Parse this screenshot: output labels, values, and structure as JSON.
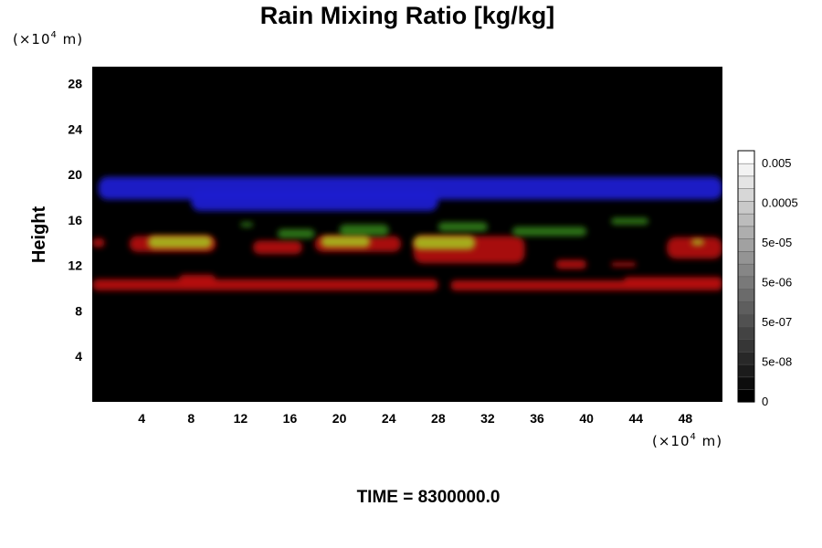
{
  "chart_data": {
    "type": "heatmap",
    "title": "Rain Mixing Ratio [kg/kg]",
    "ylabel": "Height",
    "xlabel": "",
    "x_unit": {
      "prefix": "(×10",
      "exp": "4",
      "suffix": " m)"
    },
    "y_unit": {
      "prefix": "(×10",
      "exp": "4",
      "suffix": " m)"
    },
    "xlim": [
      0,
      51
    ],
    "ylim": [
      0,
      29.5
    ],
    "x_ticks": [
      4,
      8,
      12,
      16,
      20,
      24,
      28,
      32,
      36,
      40,
      44,
      48
    ],
    "y_ticks": [
      4,
      8,
      12,
      16,
      20,
      24,
      28
    ],
    "background_color": "#000000",
    "colorbar": {
      "labels": [
        "0.005",
        "0.0005",
        "5e-05",
        "5e-06",
        "5e-07",
        "5e-08",
        "0"
      ],
      "n_levels": 20,
      "colors": [
        "#000000",
        "#ffffff"
      ]
    },
    "layers": [
      {
        "name": "blue-layer",
        "color": "#1a1fd0",
        "bands": [
          {
            "x0": 0.5,
            "x1": 51,
            "y0": 17.8,
            "y1": 19.8
          },
          {
            "x0": 8,
            "x1": 28,
            "y0": 16.8,
            "y1": 18.6
          }
        ]
      },
      {
        "name": "upper-red-layer",
        "color": "#b01010",
        "bands": [
          {
            "x0": 0,
            "x1": 1,
            "y0": 13.6,
            "y1": 14.4
          },
          {
            "x0": 3,
            "x1": 10,
            "y0": 13.2,
            "y1": 14.6
          },
          {
            "x0": 13,
            "x1": 17,
            "y0": 13.0,
            "y1": 14.2
          },
          {
            "x0": 18,
            "x1": 25,
            "y0": 13.2,
            "y1": 14.6
          },
          {
            "x0": 26,
            "x1": 35,
            "y0": 12.2,
            "y1": 14.6
          },
          {
            "x0": 37.5,
            "x1": 40,
            "y0": 11.7,
            "y1": 12.5
          },
          {
            "x0": 42,
            "x1": 44,
            "y0": 11.9,
            "y1": 12.3
          },
          {
            "x0": 46.5,
            "x1": 51,
            "y0": 12.6,
            "y1": 14.5
          }
        ]
      },
      {
        "name": "lower-red-layer",
        "color": "#b50a0a",
        "bands": [
          {
            "x0": 0,
            "x1": 28,
            "y0": 9.8,
            "y1": 10.8
          },
          {
            "x0": 7,
            "x1": 10,
            "y0": 10.2,
            "y1": 11.2
          },
          {
            "x0": 29,
            "x1": 51,
            "y0": 9.8,
            "y1": 10.7
          },
          {
            "x0": 43,
            "x1": 51,
            "y0": 10.2,
            "y1": 11.0
          }
        ]
      },
      {
        "name": "green-patches",
        "color": "#2e7a18",
        "bands": [
          {
            "x0": 12,
            "x1": 13,
            "y0": 15.4,
            "y1": 15.8
          },
          {
            "x0": 15,
            "x1": 18,
            "y0": 14.4,
            "y1": 15.2
          },
          {
            "x0": 20,
            "x1": 24,
            "y0": 14.6,
            "y1": 15.6
          },
          {
            "x0": 28,
            "x1": 32,
            "y0": 15.0,
            "y1": 15.8
          },
          {
            "x0": 34,
            "x1": 40,
            "y0": 14.6,
            "y1": 15.4
          },
          {
            "x0": 42,
            "x1": 45,
            "y0": 15.6,
            "y1": 16.2
          }
        ]
      },
      {
        "name": "yellow-cores",
        "color": "#a6b51e",
        "bands": [
          {
            "x0": 4.5,
            "x1": 9.7,
            "y0": 13.5,
            "y1": 14.6
          },
          {
            "x0": 18.5,
            "x1": 22.5,
            "y0": 13.6,
            "y1": 14.6
          },
          {
            "x0": 26,
            "x1": 31,
            "y0": 13.4,
            "y1": 14.6
          },
          {
            "x0": 48.5,
            "x1": 49.5,
            "y0": 13.8,
            "y1": 14.3
          }
        ]
      }
    ]
  },
  "footer": {
    "time_label": "TIME = 8300000.0"
  }
}
